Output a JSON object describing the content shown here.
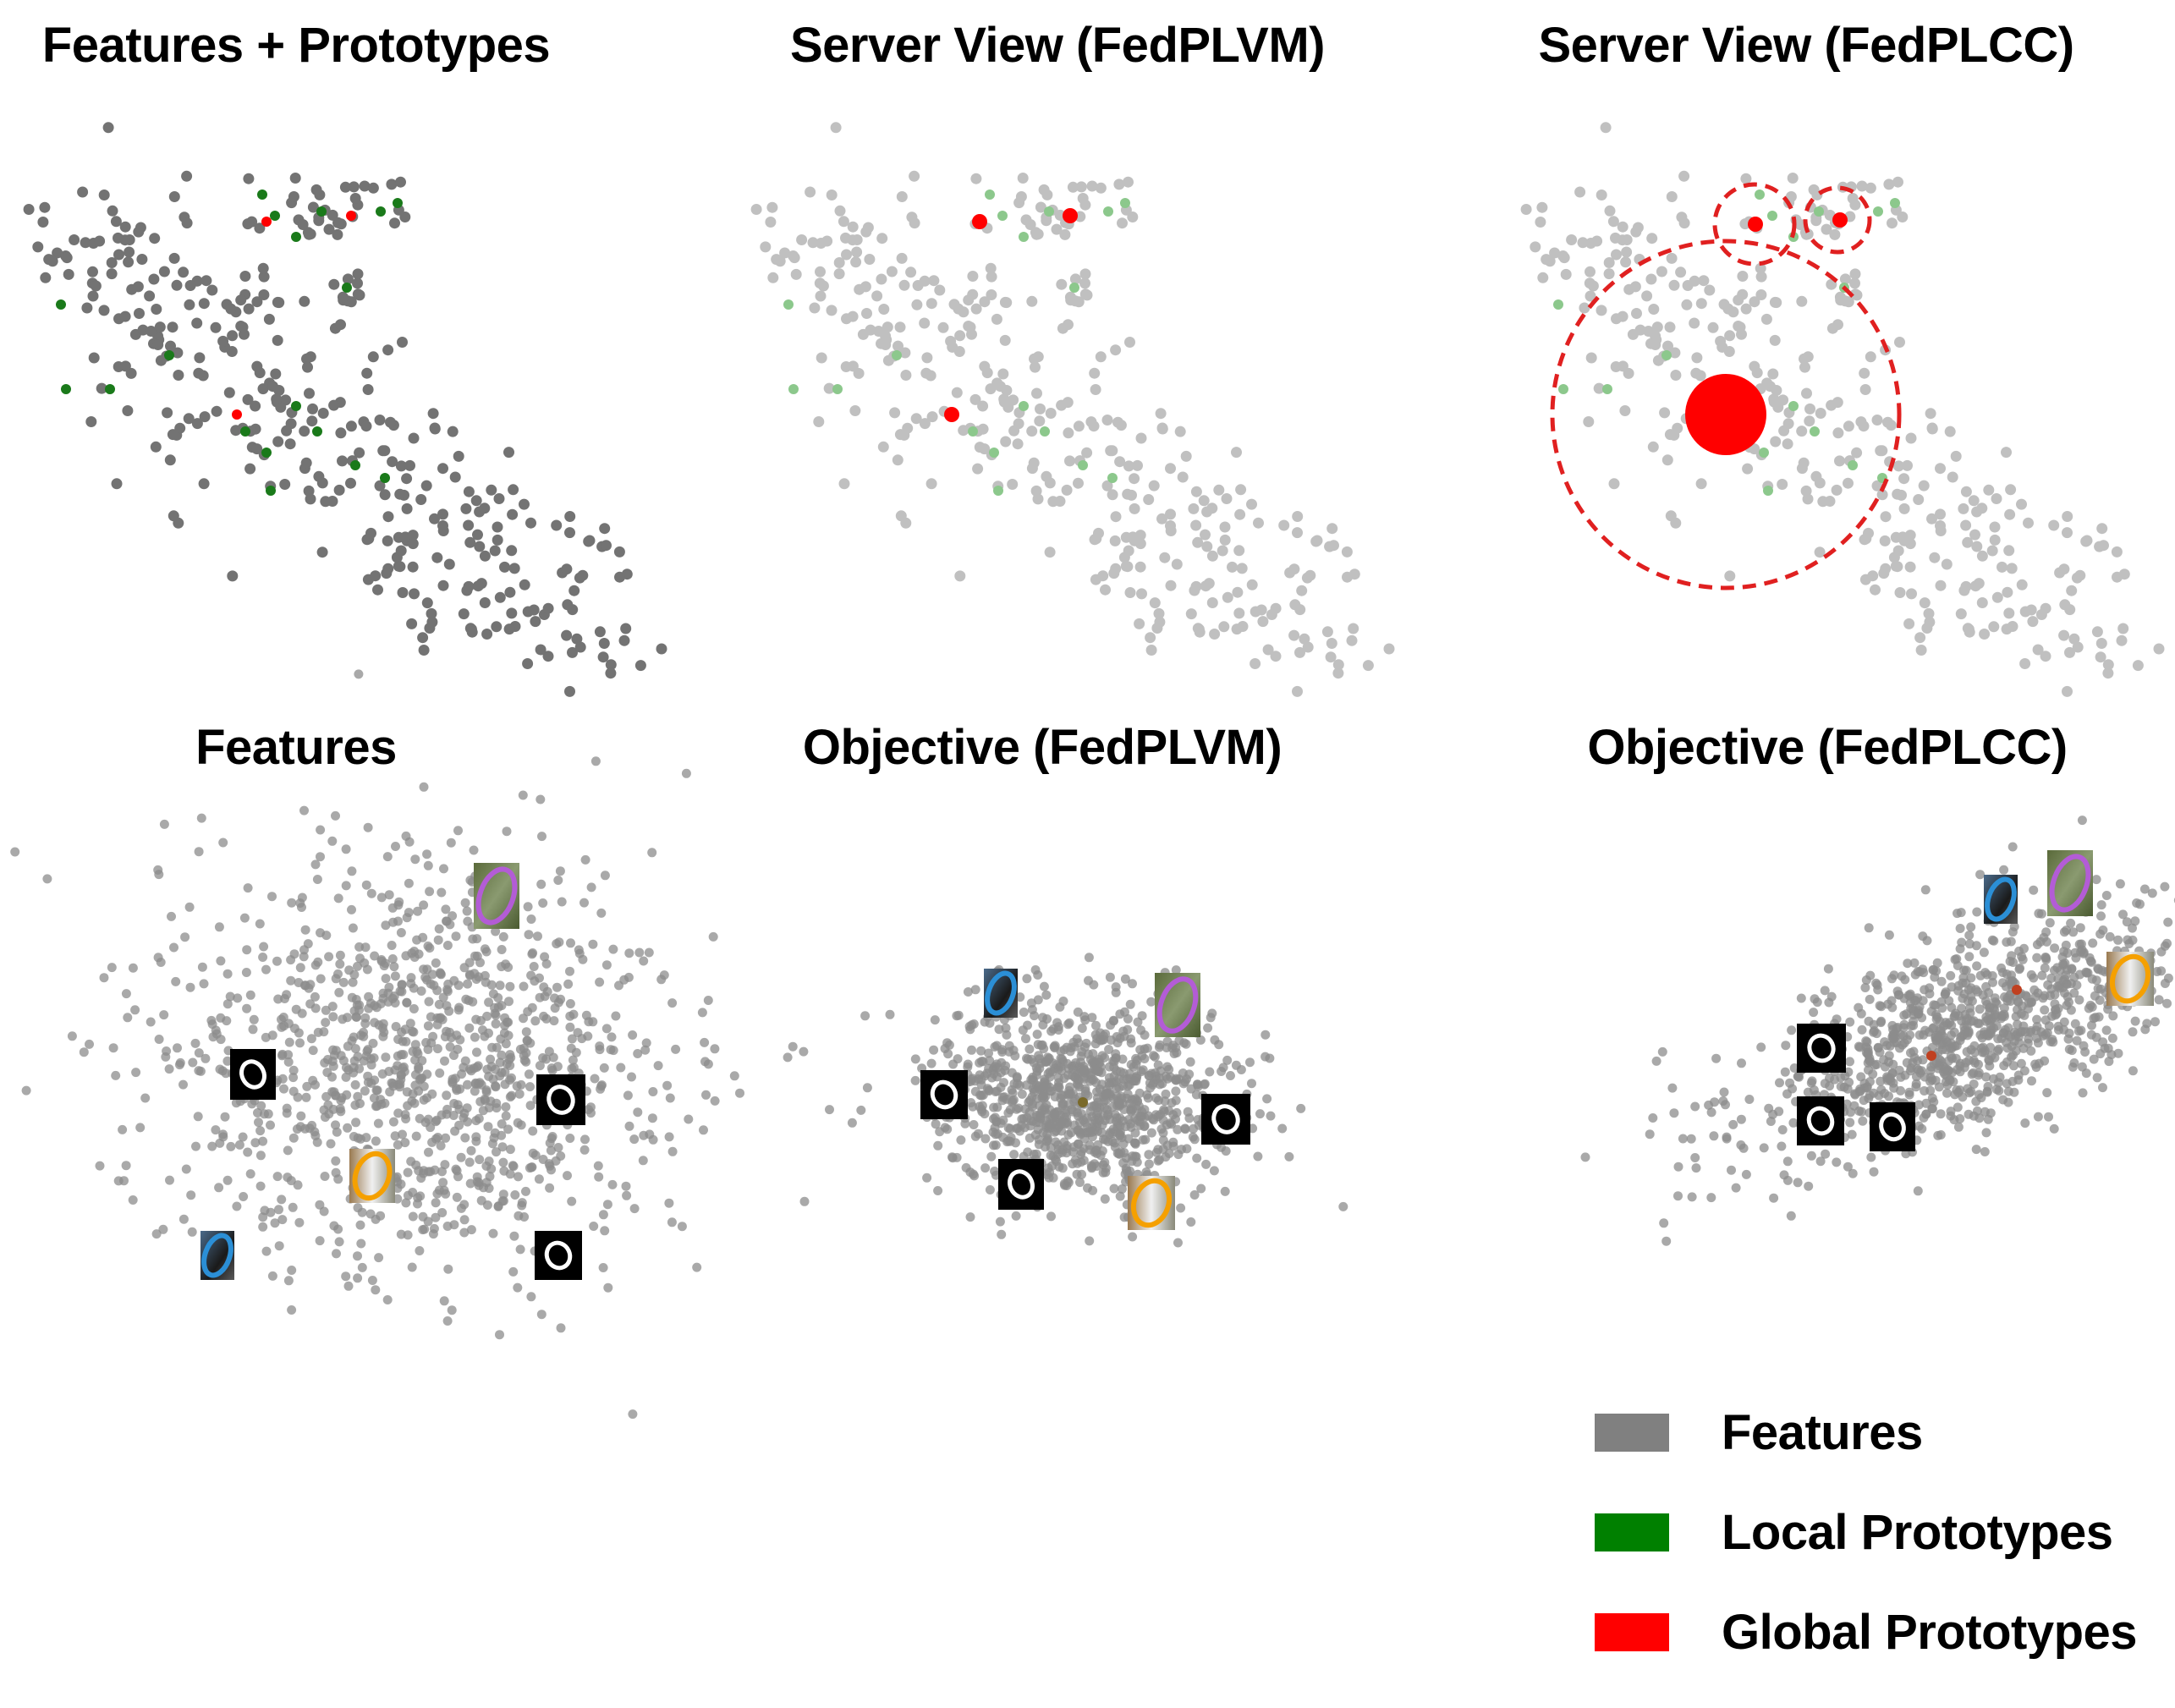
{
  "panels": {
    "top_left": {
      "title": "Features + Prototypes"
    },
    "top_mid": {
      "title": "Server View (FedPLVM)"
    },
    "top_right": {
      "title": "Server View (FedPLCC)"
    },
    "bottom_left": {
      "title": "Features"
    },
    "bottom_mid": {
      "title": "Objective (FedPLVM)"
    },
    "bottom_right": {
      "title": "Objective (FedPLCC)"
    }
  },
  "legend": {
    "items": [
      {
        "label": "Features",
        "color": "#808080"
      },
      {
        "label": "Local Prototypes",
        "color": "#008000"
      },
      {
        "label": "Global Prototypes",
        "color": "#ff0000"
      }
    ]
  },
  "colors": {
    "feature_dark": "#737373",
    "feature_light": "#c0c0c0",
    "feature_mid": "#8c8c8c",
    "local_prototype": "#1a7a1a",
    "local_prototype_faded": "#8cc88c",
    "global_prototype": "#ff0000",
    "cluster_circle": "#e02020",
    "oval_purple": "#b35cd6",
    "oval_orange": "#f5a000",
    "oval_blue": "#2b8fd6"
  },
  "thumbnail_icons": [
    "digit-zero-icon",
    "cat-photo-icon",
    "dog-photo-icon",
    "bird-photo-icon"
  ]
}
